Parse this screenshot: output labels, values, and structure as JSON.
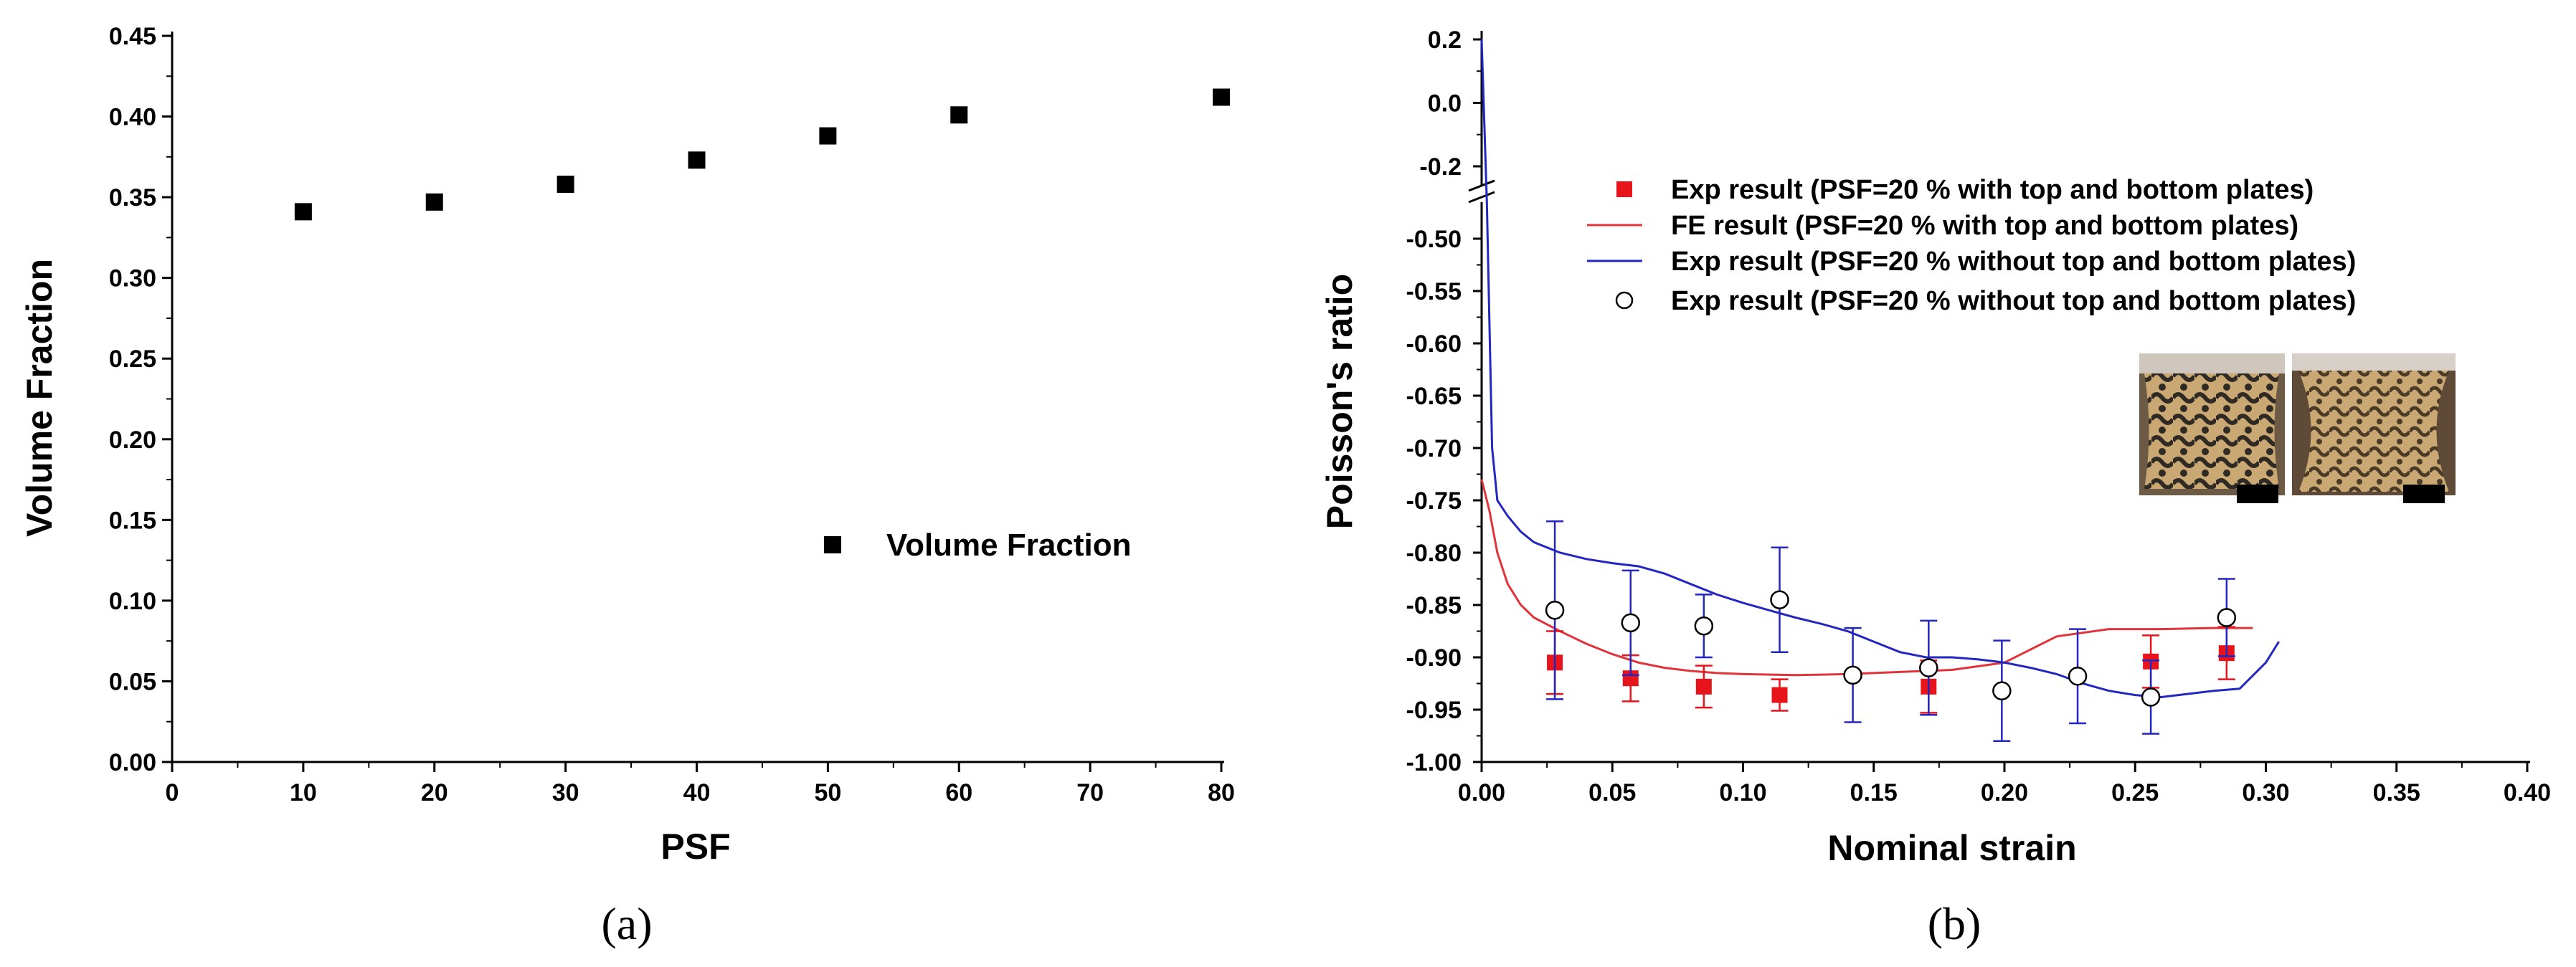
{
  "chart_data": [
    {
      "id": "a",
      "type": "scatter",
      "panel_label": "(a)",
      "title": "",
      "xlabel": "PSF",
      "ylabel": "Volume Fraction",
      "xlim": [
        0,
        80
      ],
      "ylim": [
        0.0,
        0.45
      ],
      "xticks": [
        "0",
        "10",
        "20",
        "30",
        "40",
        "50",
        "60",
        "70",
        "80"
      ],
      "yticks": [
        "0.00",
        "0.05",
        "0.10",
        "0.15",
        "0.20",
        "0.25",
        "0.30",
        "0.35",
        "0.40",
        "0.45"
      ],
      "legend_position": "lower-right",
      "series": [
        {
          "name": "Volume Fraction",
          "marker": "square",
          "color": "#000000",
          "x": [
            10,
            20,
            30,
            40,
            50,
            60,
            80
          ],
          "y": [
            0.341,
            0.347,
            0.358,
            0.373,
            0.388,
            0.401,
            0.412
          ]
        }
      ]
    },
    {
      "id": "b",
      "type": "line",
      "panel_label": "(b)",
      "title": "",
      "xlabel": "Nominal strain",
      "ylabel": "Poisson's ratio",
      "xlim": [
        0.0,
        0.4
      ],
      "ylim": [
        -1.0,
        0.2
      ],
      "axis_break": "between -0.2 and -0.50",
      "xticks": [
        "0.00",
        "0.05",
        "0.10",
        "0.15",
        "0.20",
        "0.25",
        "0.30",
        "0.35",
        "0.40"
      ],
      "yticks": [
        "0.2",
        "0.0",
        "-0.2",
        "-0.50",
        "-0.55",
        "-0.60",
        "-0.65",
        "-0.70",
        "-0.75",
        "-0.80",
        "-0.85",
        "-0.90",
        "-0.95",
        "-1.00"
      ],
      "legend_position": "top-right",
      "legend": [
        "Exp result (PSF=20 % with top and bottom plates)",
        "FE result (PSF=20 % with top and bottom plates)",
        "Exp result (PSF=20 % without top and bottom plates)",
        "Exp result (PSF=20 % without top and bottom plates)"
      ],
      "series": [
        {
          "name": "Exp result (PSF=20 % with top and bottom plates)",
          "kind": "points",
          "marker": "square",
          "color": "#e8141c",
          "x": [
            0.028,
            0.057,
            0.085,
            0.114,
            0.171,
            0.256,
            0.285
          ],
          "y": [
            -0.905,
            -0.92,
            -0.928,
            -0.936,
            -0.928,
            -0.904,
            -0.896
          ],
          "yerr": [
            0.03,
            0.022,
            0.02,
            0.015,
            0.025,
            0.025,
            0.025
          ]
        },
        {
          "name": "FE result (PSF=20 % with top and bottom plates)",
          "kind": "line",
          "color": "#e0333a",
          "x": [
            0.0,
            0.003,
            0.006,
            0.01,
            0.015,
            0.02,
            0.03,
            0.04,
            0.05,
            0.06,
            0.07,
            0.08,
            0.09,
            0.1,
            0.12,
            0.14,
            0.16,
            0.18,
            0.2,
            0.22,
            0.24,
            0.26,
            0.28,
            0.295
          ],
          "y": [
            -0.73,
            -0.76,
            -0.8,
            -0.83,
            -0.85,
            -0.862,
            -0.875,
            -0.887,
            -0.897,
            -0.905,
            -0.91,
            -0.913,
            -0.915,
            -0.916,
            -0.917,
            -0.916,
            -0.914,
            -0.912,
            -0.905,
            -0.88,
            -0.873,
            -0.873,
            -0.872,
            -0.872
          ]
        },
        {
          "name": "Exp result (PSF=20 % without top and bottom plates)",
          "kind": "line",
          "color": "#2426c0",
          "x": [
            0.0,
            0.002,
            0.004,
            0.006,
            0.01,
            0.015,
            0.02,
            0.03,
            0.04,
            0.05,
            0.06,
            0.07,
            0.08,
            0.09,
            0.1,
            0.11,
            0.12,
            0.13,
            0.14,
            0.15,
            0.16,
            0.17,
            0.18,
            0.19,
            0.2,
            0.21,
            0.22,
            0.23,
            0.24,
            0.25,
            0.26,
            0.27,
            0.28,
            0.29,
            0.3,
            0.305
          ],
          "y": [
            0.2,
            -0.35,
            -0.7,
            -0.75,
            -0.765,
            -0.78,
            -0.79,
            -0.8,
            -0.806,
            -0.81,
            -0.813,
            -0.82,
            -0.83,
            -0.84,
            -0.848,
            -0.855,
            -0.862,
            -0.868,
            -0.875,
            -0.885,
            -0.895,
            -0.9,
            -0.9,
            -0.902,
            -0.905,
            -0.91,
            -0.916,
            -0.925,
            -0.932,
            -0.936,
            -0.938,
            -0.935,
            -0.932,
            -0.93,
            -0.905,
            -0.885
          ]
        },
        {
          "name": "Exp result (PSF=20 % without top and bottom plates)",
          "kind": "points",
          "marker": "open-circle",
          "color": "#000000",
          "errcolor": "#2426c0",
          "x": [
            0.028,
            0.057,
            0.085,
            0.114,
            0.142,
            0.171,
            0.199,
            0.228,
            0.256,
            0.285
          ],
          "y": [
            -0.855,
            -0.867,
            -0.87,
            -0.845,
            -0.917,
            -0.91,
            -0.932,
            -0.918,
            -0.938,
            -0.862
          ],
          "yerr": [
            0.085,
            0.05,
            0.03,
            0.05,
            0.045,
            0.045,
            0.048,
            0.045,
            0.035,
            0.037
          ]
        }
      ]
    }
  ]
}
